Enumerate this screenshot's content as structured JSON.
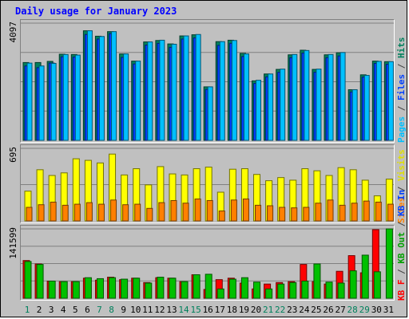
{
  "title": "Daily usage for January 2023",
  "chart_data": [
    {
      "type": "bar",
      "panel": "top",
      "ymax_label": "4097",
      "ylim": [
        0,
        4097
      ],
      "categories": [
        "1",
        "2",
        "3",
        "4",
        "5",
        "6",
        "7",
        "8",
        "9",
        "10",
        "11",
        "12",
        "13",
        "14",
        "15",
        "16",
        "17",
        "18",
        "19",
        "20",
        "21",
        "22",
        "23",
        "24",
        "25",
        "26",
        "27",
        "28",
        "29",
        "30",
        "31"
      ],
      "weekend_categories": [
        "1",
        "7",
        "8",
        "14",
        "15",
        "21",
        "22",
        "28",
        "29"
      ],
      "legend": [
        {
          "label": "Hits",
          "color": "#00805c"
        },
        {
          "label": "/",
          "color": "#404040"
        },
        {
          "label": "Files",
          "color": "#0040ff"
        },
        {
          "label": "/",
          "color": "#404040"
        },
        {
          "label": "Pages",
          "color": "#00c0ff"
        }
      ],
      "series": [
        {
          "name": "Hits",
          "color": "#00805c",
          "values": [
            2720,
            2720,
            2760,
            3010,
            3000,
            3830,
            3640,
            3800,
            3020,
            2770,
            3440,
            3490,
            3370,
            3650,
            3690,
            1870,
            3450,
            3500,
            3040,
            2080,
            2320,
            2480,
            2990,
            3150,
            2480,
            2990,
            3060,
            1770,
            2290,
            2770,
            2750
          ]
        },
        {
          "name": "Files",
          "color": "#0040ff",
          "values": [
            2600,
            2540,
            2700,
            2920,
            2910,
            3700,
            3540,
            3730,
            2900,
            2670,
            3330,
            3390,
            3250,
            3540,
            3580,
            1780,
            3320,
            3390,
            2930,
            1990,
            2220,
            2380,
            2890,
            3050,
            2380,
            2890,
            2950,
            1690,
            2210,
            2690,
            2660
          ]
        },
        {
          "name": "Pages",
          "color": "#00c0ff",
          "values": [
            2700,
            2600,
            2690,
            3000,
            2980,
            3830,
            3630,
            3800,
            3020,
            2770,
            3440,
            3500,
            3360,
            3650,
            3700,
            1870,
            3450,
            3490,
            3020,
            2100,
            2320,
            2490,
            3000,
            3140,
            2490,
            3000,
            3070,
            1770,
            2270,
            2760,
            2750
          ]
        }
      ]
    },
    {
      "type": "bar",
      "panel": "middle",
      "ymax_label": "695",
      "ylim": [
        0,
        695
      ],
      "legend": [
        {
          "label": "Visits",
          "color": "#e0e000"
        },
        {
          "label": "/",
          "color": "#404040"
        },
        {
          "label": "Sites",
          "color": "#ff8000"
        }
      ],
      "series": [
        {
          "name": "Visits",
          "color": "#ffff00",
          "values": [
            285,
            490,
            435,
            460,
            595,
            580,
            555,
            640,
            440,
            500,
            345,
            520,
            450,
            440,
            500,
            515,
            275,
            495,
            500,
            445,
            385,
            415,
            390,
            500,
            480,
            435,
            510,
            490,
            390,
            240,
            400
          ]
        },
        {
          "name": "Sites",
          "color": "#ff8000",
          "values": [
            130,
            155,
            180,
            150,
            160,
            175,
            160,
            200,
            155,
            160,
            120,
            175,
            195,
            170,
            210,
            195,
            95,
            200,
            210,
            150,
            145,
            130,
            125,
            130,
            170,
            200,
            150,
            170,
            190,
            180,
            160
          ]
        }
      ]
    },
    {
      "type": "bar",
      "panel": "bottom",
      "ymax_label": "141599",
      "ylim": [
        0,
        141599
      ],
      "legend": [
        {
          "label": "KB In",
          "color": "#0040ff"
        },
        {
          "label": "/",
          "color": "#404040"
        },
        {
          "label": "KB Out",
          "color": "#00a000"
        },
        {
          "label": "/",
          "color": "#404040"
        },
        {
          "label": "KB F",
          "color": "#ff0000"
        }
      ],
      "series": [
        {
          "name": "KB F",
          "color": "#ff0000",
          "values": [
            77000,
            70000,
            35000,
            34000,
            34000,
            41000,
            37000,
            43000,
            38000,
            41000,
            32000,
            42000,
            41000,
            34000,
            48000,
            18000,
            38000,
            41000,
            31000,
            19000,
            29000,
            32000,
            34000,
            69000,
            34000,
            29000,
            55000,
            87000,
            52000,
            140000,
            0
          ]
        },
        {
          "name": "KB Out",
          "color": "#00c000",
          "values": [
            75000,
            69000,
            35000,
            34000,
            34000,
            42000,
            40000,
            42000,
            39000,
            41000,
            31000,
            43000,
            41000,
            34000,
            48000,
            49000,
            19000,
            39000,
            42000,
            33000,
            19000,
            29000,
            32000,
            35000,
            70000,
            33000,
            31000,
            56000,
            88000,
            54000,
            141599
          ]
        }
      ]
    }
  ],
  "x_axis_labels": [
    "1",
    "2",
    "3",
    "4",
    "5",
    "6",
    "7",
    "8",
    "9",
    "10",
    "11",
    "12",
    "13",
    "14",
    "15",
    "16",
    "17",
    "18",
    "19",
    "20",
    "21",
    "22",
    "23",
    "24",
    "25",
    "26",
    "27",
    "28",
    "29",
    "30",
    "31"
  ]
}
